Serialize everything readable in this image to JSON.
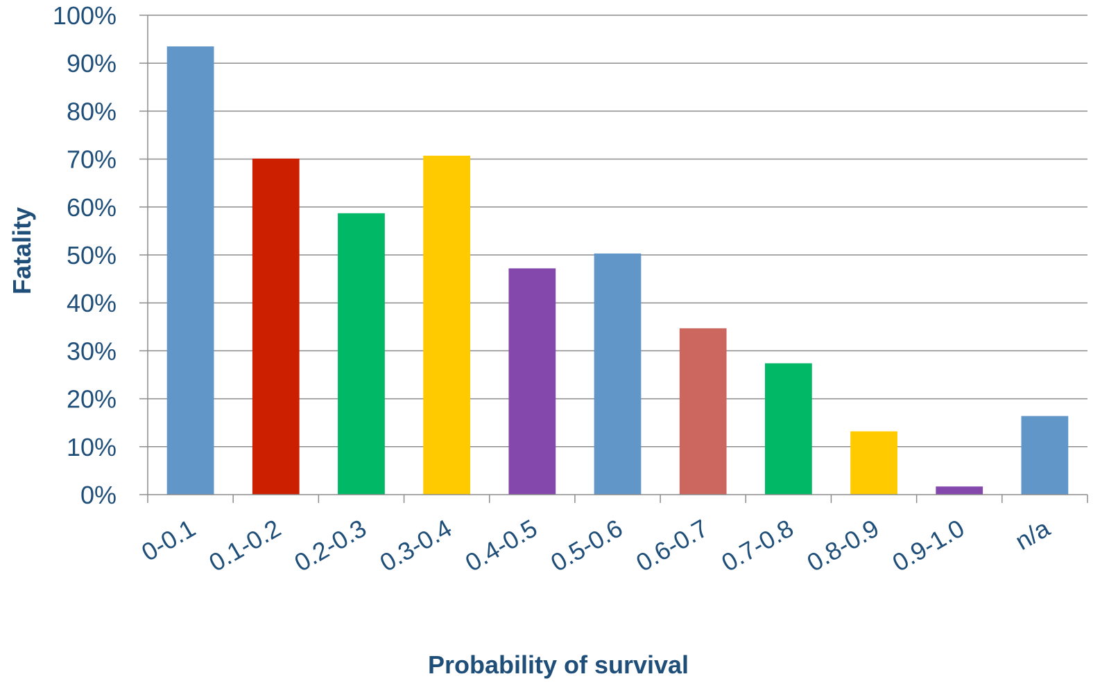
{
  "chart_data": {
    "type": "bar",
    "title": "",
    "xlabel": "Probability of survival",
    "ylabel": "Fatality",
    "ylim": [
      0,
      100
    ],
    "y_ticks": [
      0,
      10,
      20,
      30,
      40,
      50,
      60,
      70,
      80,
      90,
      100
    ],
    "y_tick_format": "percent",
    "grid": true,
    "legend": "none",
    "categories": [
      "0-0.1",
      "0.1-0.2",
      "0.2-0.3",
      "0.3-0.4",
      "0.4-0.5",
      "0.5-0.6",
      "0.6-0.7",
      "0.7-0.8",
      "0.8-0.9",
      "0.9-1.0",
      "n/a"
    ],
    "values": [
      93.5,
      70.1,
      58.7,
      70.7,
      47.2,
      50.3,
      34.7,
      27.4,
      13.2,
      1.7,
      16.4
    ],
    "bar_colors": [
      "#6196c9",
      "#cc1f00",
      "#00b865",
      "#ffcb00",
      "#8447ac",
      "#6196c9",
      "#cc6760",
      "#00b865",
      "#ffcb00",
      "#8447ac",
      "#6196c9"
    ]
  }
}
